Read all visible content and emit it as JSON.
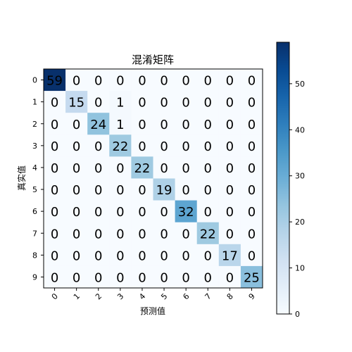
{
  "chart_data": {
    "type": "heatmap",
    "title": "混淆矩阵",
    "xlabel": "预测值",
    "ylabel": "真实值",
    "x_categories": [
      "0",
      "1",
      "2",
      "3",
      "4",
      "5",
      "6",
      "7",
      "8",
      "9"
    ],
    "y_categories": [
      "0",
      "1",
      "2",
      "3",
      "4",
      "5",
      "6",
      "7",
      "8",
      "9"
    ],
    "matrix": [
      [
        59,
        0,
        0,
        0,
        0,
        0,
        0,
        0,
        0,
        0
      ],
      [
        0,
        15,
        0,
        1,
        0,
        0,
        0,
        0,
        0,
        0
      ],
      [
        0,
        0,
        24,
        1,
        0,
        0,
        0,
        0,
        0,
        0
      ],
      [
        0,
        0,
        0,
        22,
        0,
        0,
        0,
        0,
        0,
        0
      ],
      [
        0,
        0,
        0,
        0,
        22,
        0,
        0,
        0,
        0,
        0
      ],
      [
        0,
        0,
        0,
        0,
        0,
        19,
        0,
        0,
        0,
        0
      ],
      [
        0,
        0,
        0,
        0,
        0,
        0,
        32,
        0,
        0,
        0
      ],
      [
        0,
        0,
        0,
        0,
        0,
        0,
        0,
        22,
        0,
        0
      ],
      [
        0,
        0,
        0,
        0,
        0,
        0,
        0,
        0,
        17,
        0
      ],
      [
        0,
        0,
        0,
        0,
        0,
        0,
        0,
        0,
        0,
        25
      ]
    ],
    "colormap": "Blues",
    "value_range": [
      0,
      59
    ],
    "colorbar_ticks": [
      0,
      10,
      20,
      30,
      40,
      50
    ],
    "grid": false
  }
}
